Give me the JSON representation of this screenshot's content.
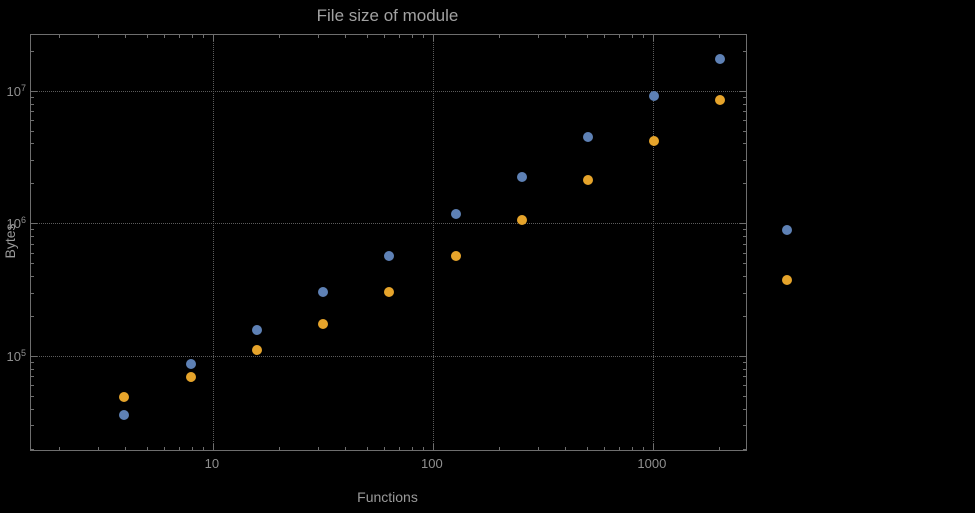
{
  "chart_data": {
    "type": "scatter",
    "title": "File size of module",
    "xlabel": "Functions",
    "ylabel": "Bytes",
    "x_scale": "log",
    "y_scale": "log",
    "xlim": [
      1.49,
      2650
    ],
    "ylim": [
      19500,
      26300000
    ],
    "grid": "dotted",
    "legend_position": "none",
    "x_ticks": [
      {
        "value": 10,
        "label": "10"
      },
      {
        "value": 100,
        "label": "100"
      },
      {
        "value": 1000,
        "label": "1000"
      }
    ],
    "y_ticks": [
      {
        "value": 100000,
        "base": "10",
        "exp": "5"
      },
      {
        "value": 1000000,
        "base": "10",
        "exp": "6"
      },
      {
        "value": 10000000,
        "base": "10",
        "exp": "7"
      }
    ],
    "x": [
      4,
      8,
      16,
      32,
      64,
      128,
      256,
      512,
      1024,
      2048,
      4096
    ],
    "series": [
      {
        "name": "series-blue",
        "color": "#5E81B5",
        "values": [
          35000,
          85000,
          155000,
          300000,
          560000,
          1150000,
          2200000,
          4400000,
          8900000,
          17000000,
          880000
        ]
      },
      {
        "name": "series-orange",
        "color": "#E6A42B",
        "values": [
          48000,
          68000,
          108000,
          172000,
          300000,
          560000,
          1050000,
          2100000,
          4100000,
          8300000,
          370000
        ]
      }
    ],
    "frame_color": "#6e6e6e",
    "grid_color": "#5c5c5c",
    "text_color": "#9a9a9a",
    "background": "#000000"
  }
}
